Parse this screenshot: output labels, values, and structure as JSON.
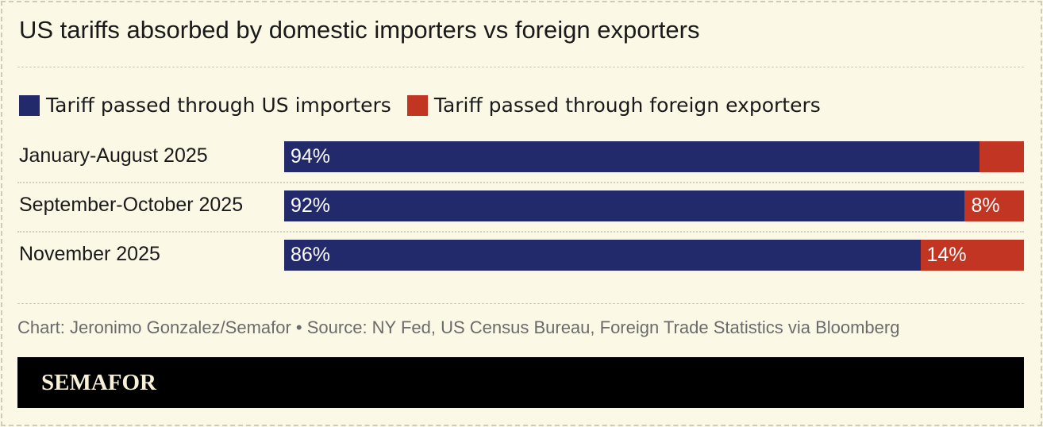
{
  "title": "US tariffs absorbed by domestic importers vs foreign exporters",
  "source": "Chart: Jeronimo Gonzalez/Semafor • Source: NY Fed, US Census Bureau, Foreign Trade Statistics via Bloomberg",
  "logo": "SEMAFOR",
  "colors": {
    "importers": "#232a6b",
    "exporters": "#c23522",
    "background": "#fcf8e6"
  },
  "chart_data": {
    "type": "bar",
    "stacked": true,
    "orientation": "horizontal",
    "categories": [
      "January-August 2025",
      "September-October 2025",
      "November 2025"
    ],
    "series": [
      {
        "name": "Tariff passed through US importers",
        "values": [
          94,
          92,
          86
        ],
        "labels": [
          "94%",
          "92%",
          "86%"
        ]
      },
      {
        "name": "Tariff passed through foreign exporters",
        "values": [
          6,
          8,
          14
        ],
        "labels": [
          "",
          "8%",
          "14%"
        ]
      }
    ],
    "xlim": [
      0,
      100
    ],
    "legend": "top-left"
  }
}
